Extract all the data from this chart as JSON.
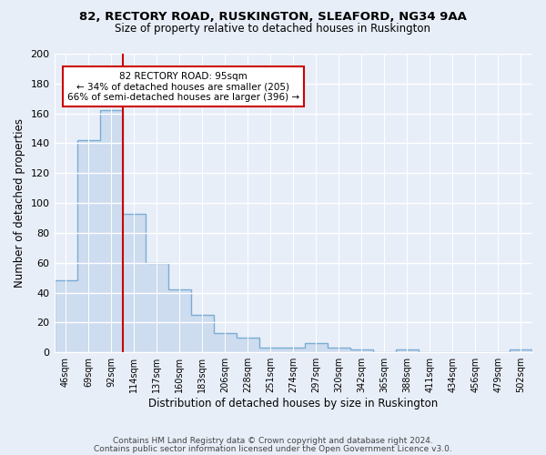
{
  "title1": "82, RECTORY ROAD, RUSKINGTON, SLEAFORD, NG34 9AA",
  "title2": "Size of property relative to detached houses in Ruskington",
  "xlabel": "Distribution of detached houses by size in Ruskington",
  "ylabel": "Number of detached properties",
  "bar_labels": [
    "46sqm",
    "69sqm",
    "92sqm",
    "114sqm",
    "137sqm",
    "160sqm",
    "183sqm",
    "206sqm",
    "228sqm",
    "251sqm",
    "274sqm",
    "297sqm",
    "320sqm",
    "342sqm",
    "365sqm",
    "388sqm",
    "411sqm",
    "434sqm",
    "456sqm",
    "479sqm",
    "502sqm"
  ],
  "bar_values": [
    48,
    142,
    162,
    93,
    60,
    42,
    25,
    13,
    10,
    3,
    3,
    6,
    3,
    2,
    0,
    2,
    0,
    0,
    0,
    0,
    2
  ],
  "bar_fill_color": "#cddcef",
  "bar_edge_color": "#7aadd4",
  "vline_color": "#cc0000",
  "vline_index": 2,
  "annotation_title": "82 RECTORY ROAD: 95sqm",
  "annotation_line1": "← 34% of detached houses are smaller (205)",
  "annotation_line2": "66% of semi-detached houses are larger (396) →",
  "annotation_box_facecolor": "#ffffff",
  "annotation_box_edgecolor": "#cc0000",
  "footer1": "Contains HM Land Registry data © Crown copyright and database right 2024.",
  "footer2": "Contains public sector information licensed under the Open Government Licence v3.0.",
  "ylim": [
    0,
    200
  ],
  "yticks": [
    0,
    20,
    40,
    60,
    80,
    100,
    120,
    140,
    160,
    180,
    200
  ],
  "background_color": "#e8eef8",
  "plot_bg_color": "#e8eef8",
  "grid_color": "#ffffff",
  "title1_fontsize": 9.5,
  "title2_fontsize": 8.5
}
